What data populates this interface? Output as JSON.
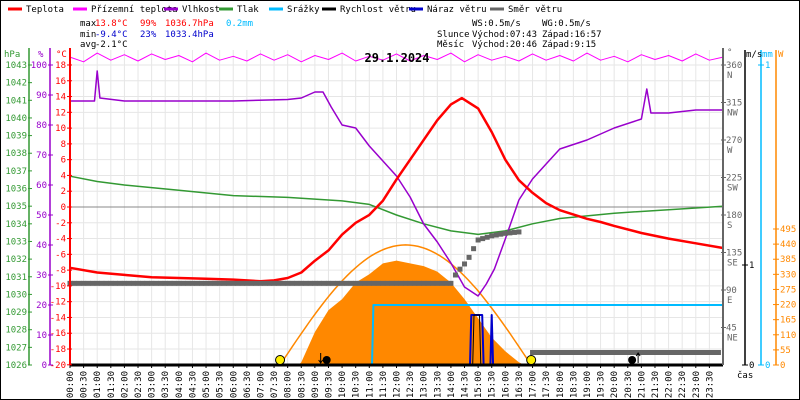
{
  "chart_data": {
    "type": "line",
    "title": "29.1.2024",
    "legend": [
      "Teplota",
      "Přízemní teplota",
      "Vlhkost",
      "Tlak",
      "Srážky",
      "Rychlost větru",
      "Náraz větru",
      "Směr větru"
    ],
    "legend_colors": [
      "#ff0000",
      "#ff00ff",
      "#9900cc",
      "#339933",
      "#00bbff",
      "#000000",
      "#0000cc",
      "#666666"
    ],
    "legend_placement": "top",
    "stats": {
      "max_label": "max",
      "min_label": "min",
      "avg_label": "avg",
      "temp_max": "13.8°C",
      "hum_max": "99%",
      "press_max": "1036.7hPa",
      "rain_max": "0.2mm",
      "temp_min": "-9.4°C",
      "hum_min": "23%",
      "press_min": "1033.4hPa",
      "temp_avg": "-2.1°C",
      "ws": "WS:0.5m/s",
      "wg": "WG:0.5m/s",
      "sun_label": "Slunce",
      "sun_rise": "Východ:07:43",
      "sun_set": "Západ:16:57",
      "moon_label": "Měsíc",
      "moon_rise": "Východ:20:46",
      "moon_set": "Západ:9:15"
    },
    "axes": {
      "hpa": {
        "unit": "hPa",
        "ticks": [
          "1043",
          "1042",
          "1041",
          "1040",
          "1039",
          "1038",
          "1037",
          "1036",
          "1035",
          "1034",
          "1033",
          "1032",
          "1031",
          "1030",
          "1029",
          "1028",
          "1027",
          "1026"
        ],
        "range": [
          1026,
          1043
        ],
        "color": "#339933"
      },
      "percent": {
        "unit": "%",
        "ticks": [
          "100",
          "90",
          "80",
          "70",
          "60",
          "50",
          "40",
          "30",
          "20",
          "10",
          "0"
        ],
        "range": [
          0,
          100
        ],
        "color": "#9900cc"
      },
      "celsius": {
        "unit": "°C",
        "ticks": [
          "18",
          "16",
          "14",
          "12",
          "10",
          "8",
          "6",
          "4",
          "2",
          "0",
          "-2",
          "-4",
          "-6",
          "-8",
          "-10",
          "-12",
          "-14",
          "-16",
          "-18",
          "-20"
        ],
        "range": [
          -20,
          18
        ],
        "color": "#ff0000"
      },
      "degrees": {
        "unit": "°",
        "ticks": [
          "360",
          "315",
          "270",
          "225",
          "180",
          "135",
          "90",
          "45"
        ],
        "dirs": [
          "N",
          "NW",
          "W",
          "SW",
          "S",
          "SE",
          "E",
          "NE"
        ],
        "range": [
          0,
          360
        ],
        "color": "#666666"
      },
      "ms": {
        "unit": "m/s",
        "ticks": [
          "1",
          "0"
        ],
        "range": [
          0,
          1
        ],
        "color": "#000000"
      },
      "mm": {
        "unit": "mm",
        "ticks": [
          "1",
          "0"
        ],
        "range": [
          0,
          1
        ],
        "color": "#00bbff"
      },
      "watt": {
        "unit": "W",
        "ticks": [
          "495",
          "440",
          "385",
          "330",
          "275",
          "220",
          "165",
          "110",
          "55",
          "0"
        ],
        "range": [
          0,
          540
        ],
        "color": "#ff8800"
      },
      "x": {
        "label": "čas",
        "ticks": [
          "00:00",
          "00:30",
          "01:00",
          "01:30",
          "02:00",
          "02:30",
          "03:00",
          "03:30",
          "04:00",
          "04:30",
          "05:00",
          "05:30",
          "06:00",
          "06:30",
          "07:00",
          "07:30",
          "08:00",
          "08:30",
          "09:00",
          "09:30",
          "10:00",
          "10:30",
          "11:00",
          "11:30",
          "12:00",
          "12:30",
          "13:00",
          "13:30",
          "14:00",
          "14:30",
          "15:00",
          "15:30",
          "16:00",
          "16:30",
          "17:00",
          "17:30",
          "18:00",
          "18:30",
          "19:00",
          "19:30",
          "20:00",
          "20:30",
          "21:00",
          "21:30",
          "22:00",
          "22:30",
          "23:00",
          "23:30"
        ],
        "range_hours": [
          0,
          24
        ]
      }
    },
    "grid": true,
    "series": {
      "temperature": [
        [
          0,
          -7.7
        ],
        [
          1,
          -8.3
        ],
        [
          2,
          -8.6
        ],
        [
          3,
          -8.9
        ],
        [
          4,
          -9.0
        ],
        [
          5,
          -9.1
        ],
        [
          6,
          -9.2
        ],
        [
          7,
          -9.4
        ],
        [
          7.5,
          -9.3
        ],
        [
          8,
          -9.0
        ],
        [
          8.5,
          -8.3
        ],
        [
          9,
          -6.8
        ],
        [
          9.5,
          -5.5
        ],
        [
          10,
          -3.5
        ],
        [
          10.5,
          -2.0
        ],
        [
          11,
          -1.0
        ],
        [
          11.5,
          0.8
        ],
        [
          12,
          3.5
        ],
        [
          12.5,
          6
        ],
        [
          13,
          8.5
        ],
        [
          13.5,
          11
        ],
        [
          14,
          13
        ],
        [
          14.4,
          13.8
        ],
        [
          15,
          12.5
        ],
        [
          15.5,
          9.5
        ],
        [
          16,
          6
        ],
        [
          16.5,
          3.4
        ],
        [
          17,
          1.8
        ],
        [
          17.5,
          0.5
        ],
        [
          18,
          -0.4
        ],
        [
          19,
          -1.5
        ],
        [
          19.5,
          -1.9
        ],
        [
          20,
          -2.4
        ],
        [
          21,
          -3.3
        ],
        [
          22,
          -4.0
        ],
        [
          23,
          -4.6
        ],
        [
          24,
          -5.2
        ]
      ],
      "apparent_temperature": [
        [
          0,
          19
        ],
        [
          0.5,
          18.4
        ],
        [
          1,
          19.5
        ],
        [
          1.5,
          18.6
        ],
        [
          2,
          19.3
        ],
        [
          2.5,
          18.5
        ],
        [
          3,
          19.4
        ],
        [
          3.5,
          18.7
        ],
        [
          4,
          19.2
        ],
        [
          4.5,
          18.4
        ],
        [
          5,
          19.5
        ],
        [
          5.5,
          18.6
        ],
        [
          6,
          19.1
        ],
        [
          6.5,
          18.5
        ],
        [
          7,
          19.4
        ],
        [
          7.5,
          18.6
        ],
        [
          8,
          19.3
        ],
        [
          8.5,
          18.4
        ],
        [
          9,
          19.2
        ],
        [
          9.5,
          18.7
        ],
        [
          10,
          19.5
        ],
        [
          10.5,
          18.5
        ],
        [
          11,
          19.1
        ],
        [
          11.5,
          18.6
        ],
        [
          12,
          19.4
        ],
        [
          12.5,
          18.5
        ],
        [
          13,
          19.2
        ],
        [
          13.5,
          18.7
        ],
        [
          14,
          19.5
        ],
        [
          14.5,
          18.4
        ],
        [
          15,
          19.3
        ],
        [
          15.5,
          18.6
        ],
        [
          16,
          19.1
        ],
        [
          16.5,
          18.5
        ],
        [
          17,
          19.4
        ],
        [
          17.5,
          18.6
        ],
        [
          18,
          19.2
        ],
        [
          18.5,
          18.5
        ],
        [
          19,
          19.5
        ],
        [
          19.5,
          18.6
        ],
        [
          20,
          19.1
        ],
        [
          20.5,
          18.4
        ],
        [
          21,
          19.3
        ],
        [
          21.5,
          18.7
        ],
        [
          22,
          19.2
        ],
        [
          22.5,
          18.5
        ],
        [
          23,
          19.4
        ],
        [
          23.5,
          18.6
        ],
        [
          24,
          19
        ]
      ],
      "humidity": [
        [
          0,
          88
        ],
        [
          0.9,
          88
        ],
        [
          1.0,
          98
        ],
        [
          1.1,
          89
        ],
        [
          2,
          88
        ],
        [
          4,
          88
        ],
        [
          6,
          88
        ],
        [
          8,
          88.5
        ],
        [
          8.5,
          89
        ],
        [
          9,
          91
        ],
        [
          9.3,
          91
        ],
        [
          9.6,
          86
        ],
        [
          10,
          80
        ],
        [
          10.5,
          79
        ],
        [
          11,
          73
        ],
        [
          11.5,
          68
        ],
        [
          12,
          63
        ],
        [
          12.5,
          56
        ],
        [
          13,
          47
        ],
        [
          13.5,
          41
        ],
        [
          14,
          34
        ],
        [
          14.5,
          26
        ],
        [
          15,
          23
        ],
        [
          15.3,
          27
        ],
        [
          15.6,
          32
        ],
        [
          16,
          42
        ],
        [
          16.5,
          55
        ],
        [
          17,
          62
        ],
        [
          17.5,
          67
        ],
        [
          18,
          72
        ],
        [
          19,
          75
        ],
        [
          20,
          79
        ],
        [
          21,
          82
        ],
        [
          21.2,
          92
        ],
        [
          21.35,
          84
        ],
        [
          22,
          84
        ],
        [
          23,
          85
        ],
        [
          24,
          85
        ]
      ],
      "pressure": [
        [
          0,
          1036.7
        ],
        [
          1,
          1036.4
        ],
        [
          2,
          1036.2
        ],
        [
          4,
          1035.9
        ],
        [
          6,
          1035.6
        ],
        [
          8,
          1035.5
        ],
        [
          10,
          1035.3
        ],
        [
          11,
          1035.1
        ],
        [
          12,
          1034.5
        ],
        [
          13,
          1034.0
        ],
        [
          14,
          1033.6
        ],
        [
          15,
          1033.4
        ],
        [
          16,
          1033.6
        ],
        [
          17,
          1034.0
        ],
        [
          18,
          1034.3
        ],
        [
          20,
          1034.6
        ],
        [
          22,
          1034.8
        ],
        [
          24,
          1035.0
        ]
      ],
      "wind_direction": [
        [
          0,
          98
        ],
        [
          14,
          98
        ],
        [
          14.2,
          110
        ],
        [
          14.6,
          125
        ],
        [
          15,
          150
        ],
        [
          15.5,
          155
        ],
        [
          16,
          158
        ],
        [
          16.6,
          160
        ],
        [
          16.65,
          15
        ],
        [
          24,
          15
        ]
      ],
      "solar_radiation": [
        [
          8.4,
          0
        ],
        [
          8.5,
          10
        ],
        [
          9,
          120
        ],
        [
          9.5,
          200
        ],
        [
          10,
          240
        ],
        [
          10.5,
          300
        ],
        [
          11,
          330
        ],
        [
          11.5,
          370
        ],
        [
          12,
          380
        ],
        [
          12.5,
          370
        ],
        [
          13,
          360
        ],
        [
          13.5,
          340
        ],
        [
          14,
          300
        ],
        [
          14.5,
          240
        ],
        [
          15,
          170
        ],
        [
          15.5,
          100
        ],
        [
          16,
          50
        ],
        [
          16.5,
          10
        ],
        [
          16.7,
          0
        ]
      ],
      "solar_theoretical": {
        "start": 7.72,
        "end": 16.95,
        "peak": 437
      },
      "precipitation": [
        [
          0,
          0
        ],
        [
          11.1,
          0
        ],
        [
          11.15,
          0.2
        ],
        [
          24,
          0.2
        ]
      ],
      "wind_gust": [
        [
          0,
          0
        ],
        [
          14.7,
          0
        ],
        [
          14.75,
          0.5
        ],
        [
          15.15,
          0.5
        ],
        [
          15.2,
          0
        ],
        [
          15.45,
          0
        ],
        [
          15.5,
          0.5
        ],
        [
          15.55,
          0
        ],
        [
          24,
          0
        ]
      ],
      "wind_speed": [
        [
          0,
          0
        ],
        [
          14.8,
          0
        ],
        [
          14.85,
          0.5
        ],
        [
          15.05,
          0.5
        ],
        [
          15.1,
          0
        ],
        [
          24,
          0
        ]
      ]
    },
    "markers": {
      "sunrise": 7.72,
      "sunset": 16.95,
      "moonset": 9.25,
      "moonrise": 20.77
    }
  }
}
